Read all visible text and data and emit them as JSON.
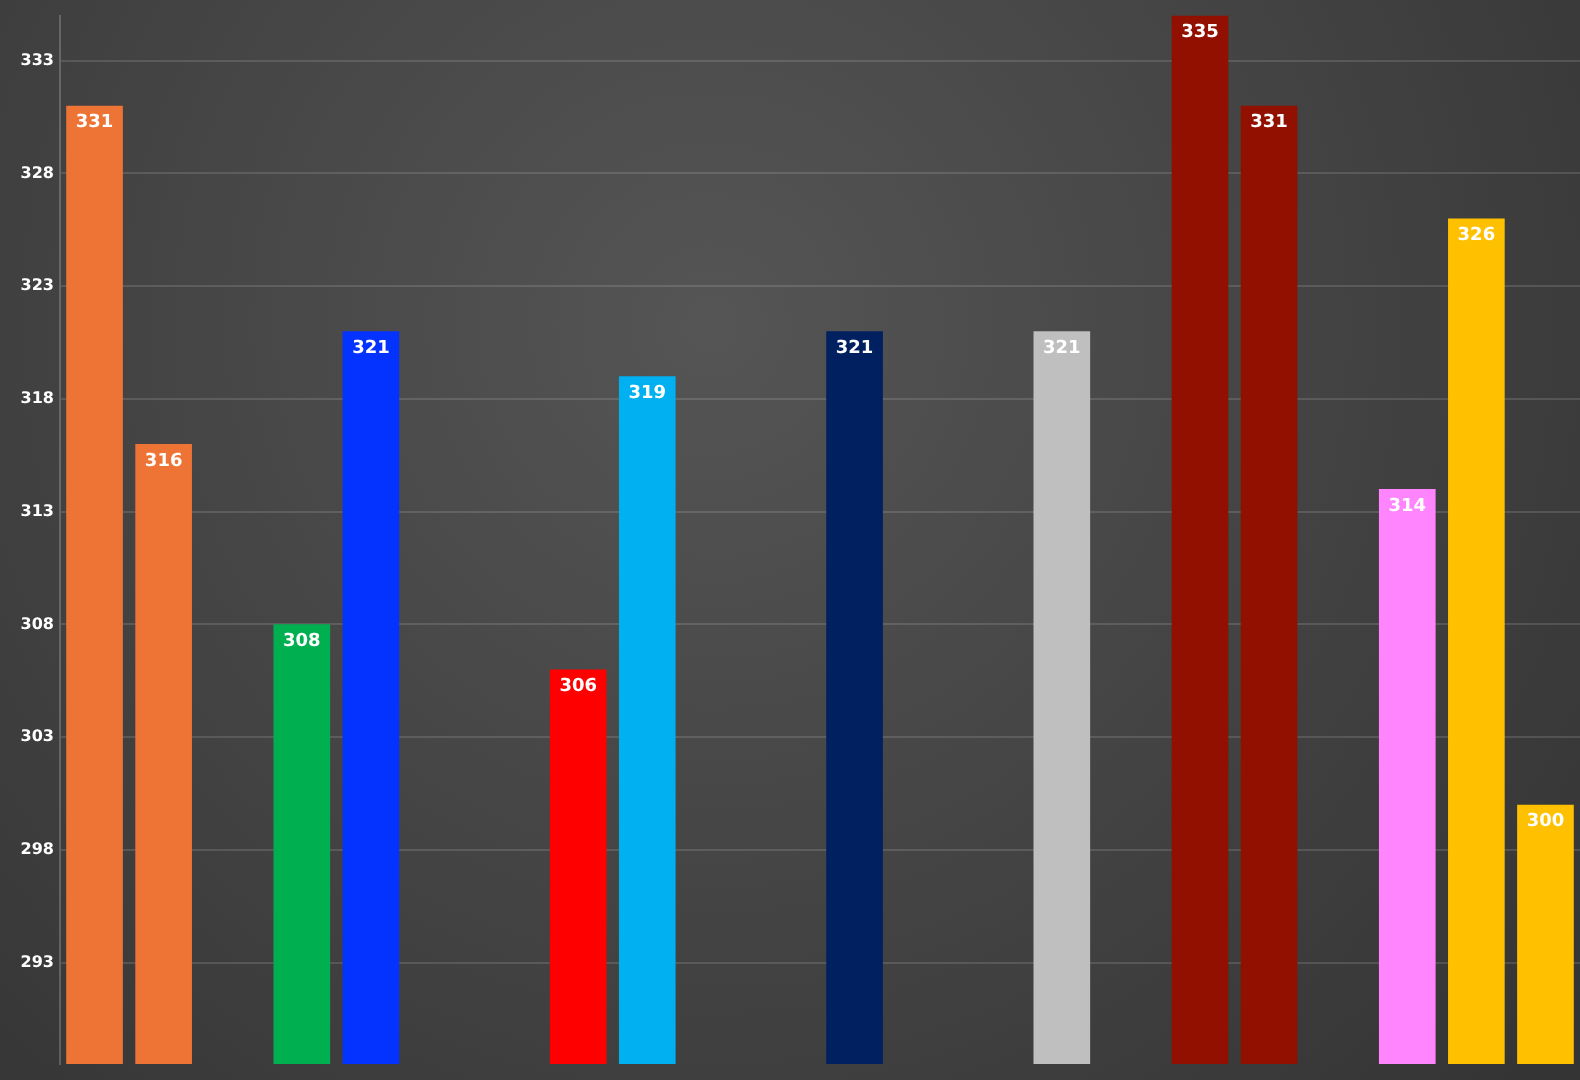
{
  "chart_data": {
    "type": "bar",
    "categories": [
      null,
      null,
      null,
      null,
      null,
      null,
      null,
      null,
      null,
      null,
      null,
      null,
      null,
      null,
      null,
      null,
      null,
      null,
      null,
      null,
      null,
      null
    ],
    "values": [
      331,
      316,
      null,
      308,
      321,
      null,
      null,
      306,
      319,
      null,
      null,
      321,
      null,
      null,
      321,
      null,
      335,
      331,
      null,
      314,
      326,
      300
    ],
    "colors": [
      "#ed7434",
      "#ed7434",
      "#000000",
      "#00b050",
      "#0433ff",
      "#000000",
      "#000000",
      "#ff0000",
      "#00b0f0",
      "#000000",
      "#000000",
      "#002060",
      "#000000",
      "#000000",
      "#bfbfbf",
      "#000000",
      "#921000",
      "#921000",
      "#000000",
      "#ff85ff",
      "#ffc000",
      "#ffc000"
    ],
    "ylim": [
      288.5,
      335
    ],
    "yticks": [
      293,
      298,
      303,
      308,
      313,
      318,
      323,
      328,
      333
    ],
    "grid": "y",
    "data_labels": true,
    "legend": false,
    "tick_labels": "y"
  }
}
